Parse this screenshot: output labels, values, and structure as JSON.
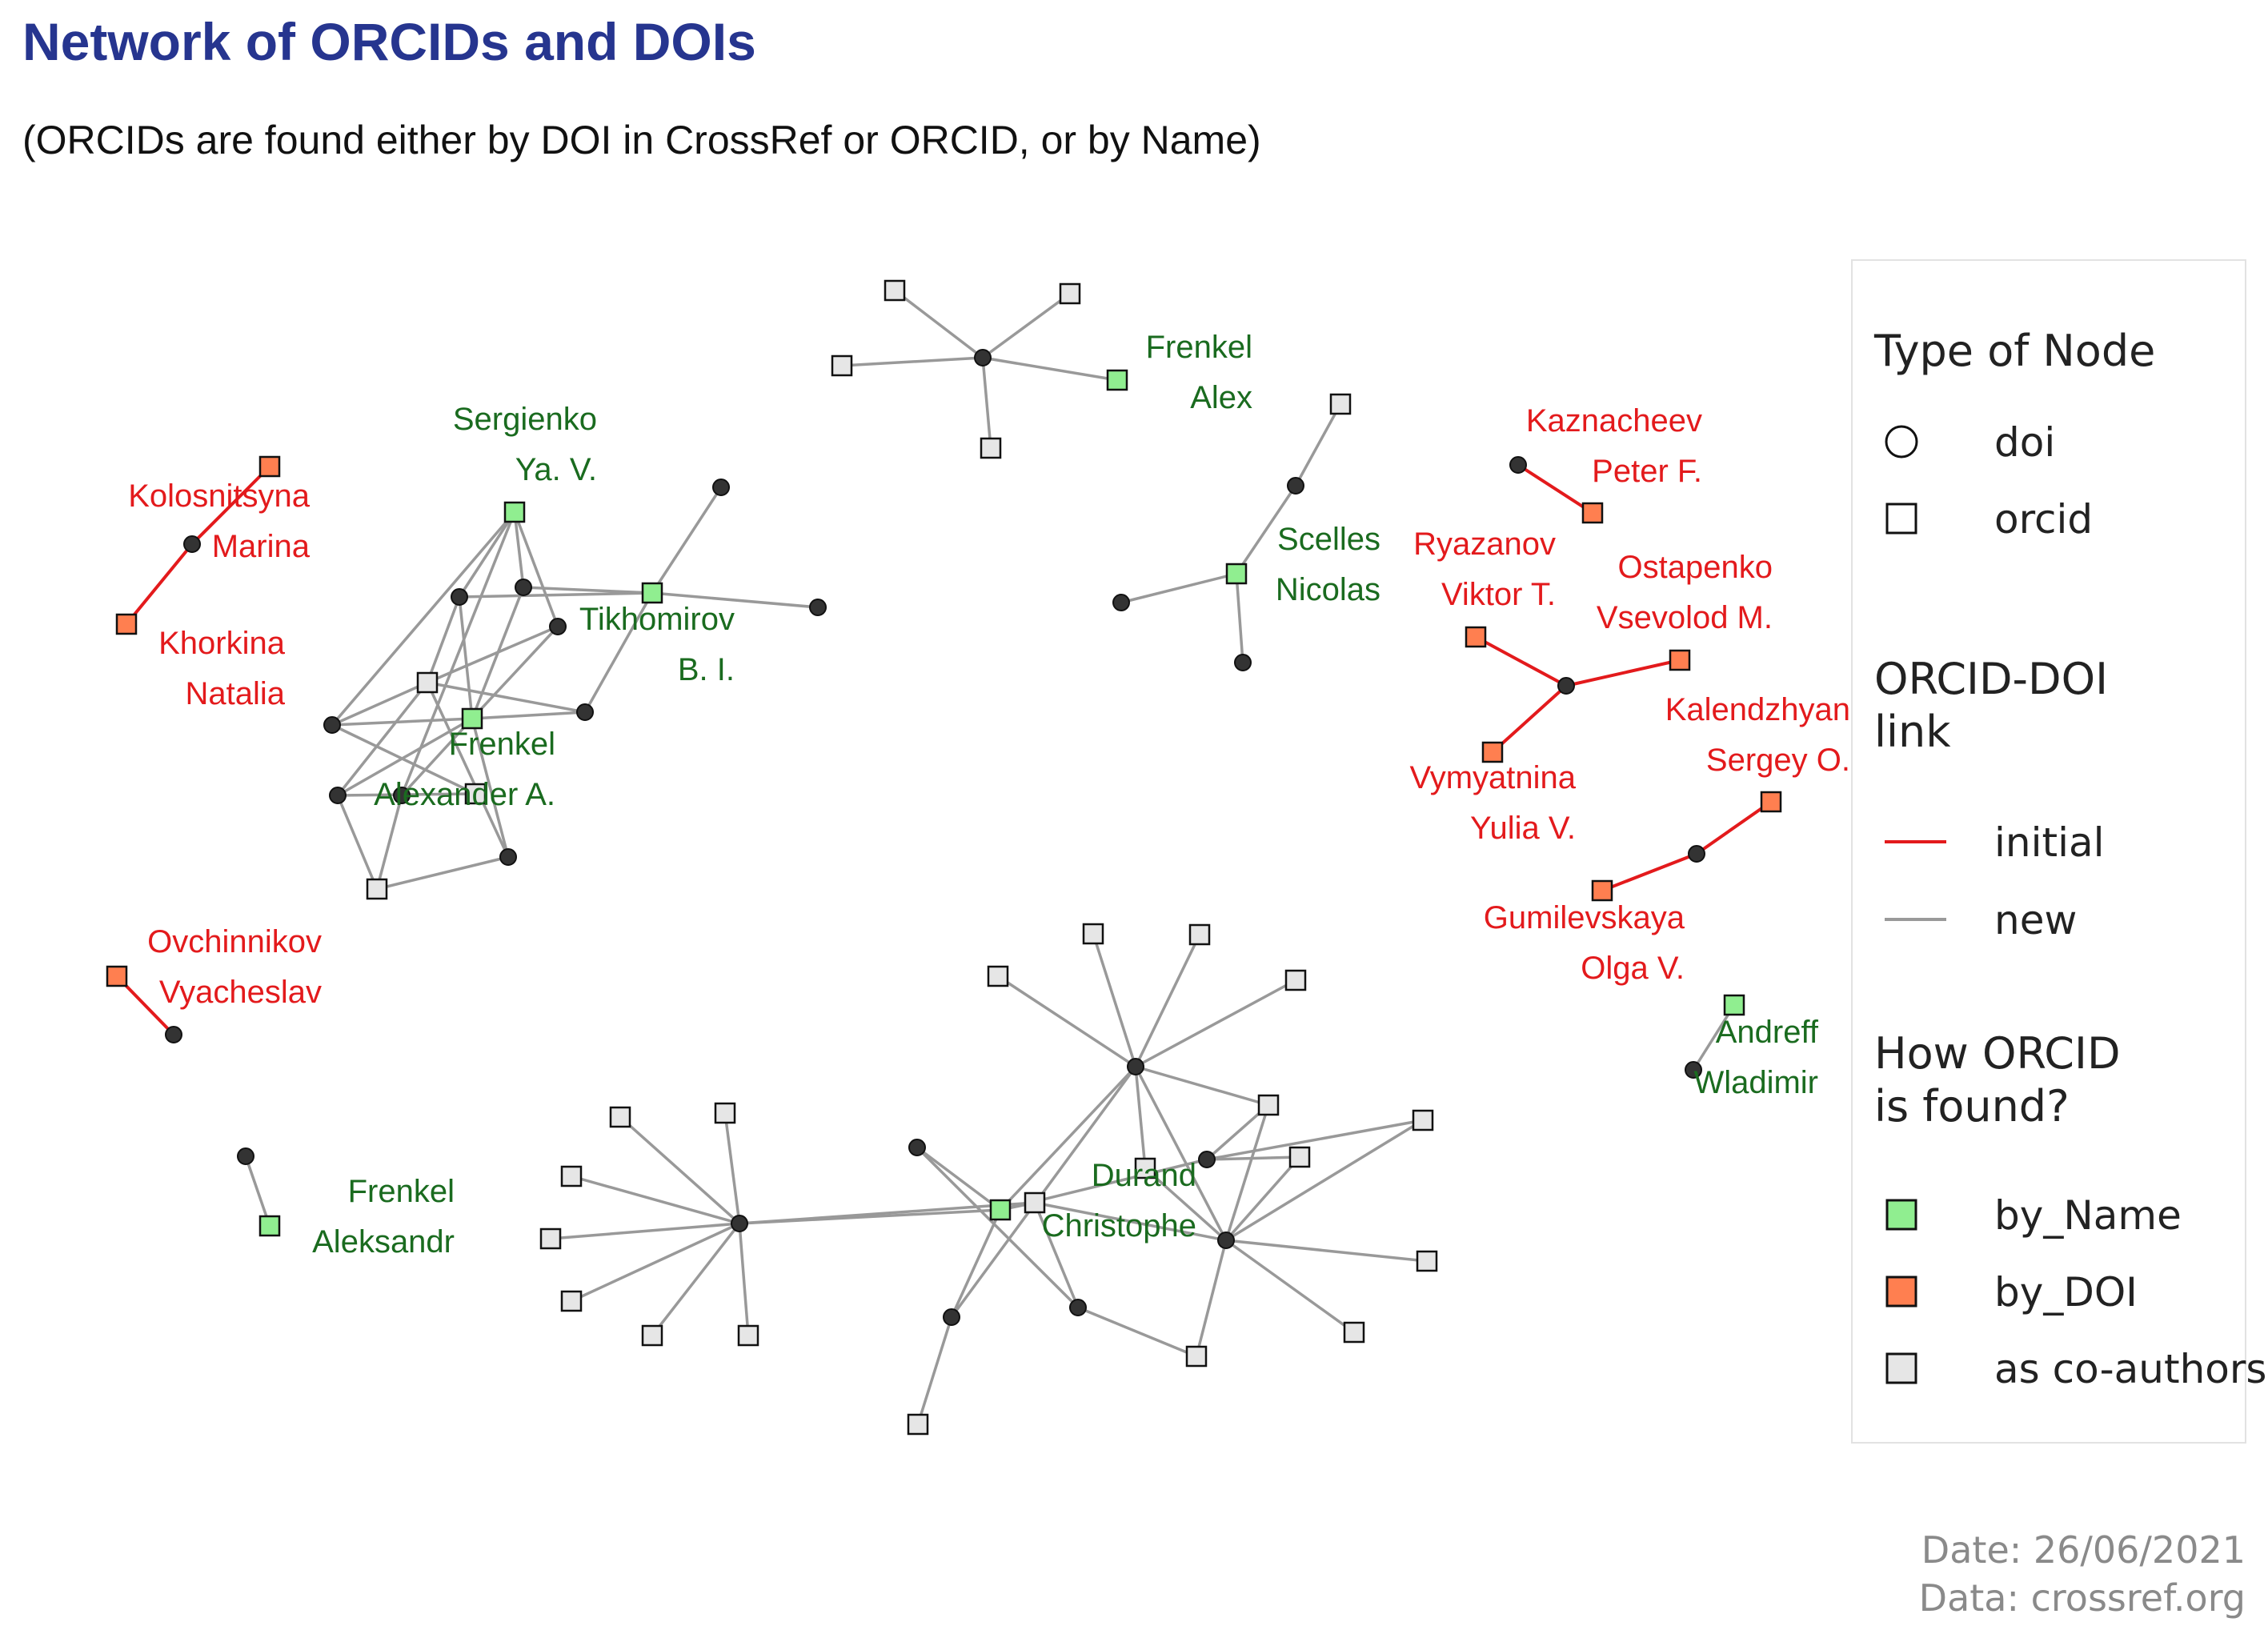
{
  "title": "Network of ORCIDs and DOIs",
  "subtitle": "(ORCIDs are found either by DOI in CrossRef or ORCID, or by Name)",
  "caption": {
    "date": "Date: 26/06/2021",
    "source": "Data: crossref.org"
  },
  "colors": {
    "title": "#26358f",
    "doi_node": "#333333",
    "initial_link": "#e31a1c",
    "new_link": "#999999",
    "by_Name": "#90ee90",
    "by_DOI": "#ff7f50",
    "as_co_authors": "#e6e6e6",
    "label_by_name": "#1a6b1f",
    "label_by_doi": "#e31a1c"
  },
  "legend": {
    "node_type": {
      "title": "Type of Node",
      "items": [
        {
          "label": "doi",
          "shape": "circle"
        },
        {
          "label": "orcid",
          "shape": "square"
        }
      ]
    },
    "link_type": {
      "title": "ORCID-DOI\nlink",
      "items": [
        {
          "label": "initial",
          "color": "#e31a1c"
        },
        {
          "label": "new",
          "color": "#999999"
        }
      ]
    },
    "found_by": {
      "title": "How ORCID\nis found?",
      "items": [
        {
          "label": "by_Name",
          "color": "#90ee90"
        },
        {
          "label": "by_DOI",
          "color": "#ff7f50"
        },
        {
          "label": "as co-authors",
          "color": "#e6e6e6"
        }
      ]
    }
  },
  "labels": {
    "kolosnitsyna": [
      "Kolosnitsyna",
      "Marina"
    ],
    "khorkina": [
      "Khorkina",
      "Natalia"
    ],
    "ovchinnikov": [
      "Ovchinnikov",
      "Vyacheslav"
    ],
    "frenkel_aleksandr": [
      "Frenkel",
      "Aleksandr"
    ],
    "sergienko": [
      "Sergienko",
      "Ya. V."
    ],
    "tikhomirov": [
      "Tikhomirov",
      "B. I."
    ],
    "frenkel_alexander": [
      "Frenkel",
      "Alexander A."
    ],
    "frenkel_alex": [
      "Frenkel",
      "Alex"
    ],
    "scelles": [
      "Scelles",
      "Nicolas"
    ],
    "kaznacheev": [
      "Kaznacheev",
      "Peter F."
    ],
    "ryazanov": [
      "Ryazanov",
      "Viktor T."
    ],
    "ostapenko": [
      "Ostapenko",
      "Vsevolod M."
    ],
    "kalendzhyan": [
      "Kalendzhyan",
      "Sergey O."
    ],
    "vymyatnina": [
      "Vymyatnina",
      "Yulia V."
    ],
    "gumilevskaya": [
      "Gumilevskaya",
      "Olga V."
    ],
    "andreff": [
      "Andreff",
      "Wladimir"
    ],
    "durand": [
      "Durand",
      "Christophe"
    ]
  }
}
